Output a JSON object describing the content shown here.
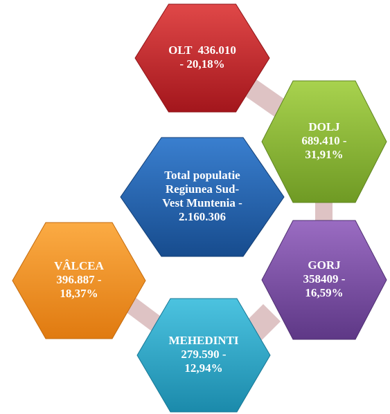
{
  "nodes": [
    {
      "lines": [
        "OLT  436.010",
        "- 20,18%"
      ]
    },
    {
      "lines": [
        "DOLJ",
        "689.410 -",
        "31,91%"
      ]
    },
    {
      "lines": [
        "Total populatie",
        "Regiunea Sud-",
        "Vest Muntenia -",
        "2.160.306"
      ]
    },
    {
      "lines": [
        "GORJ",
        "358409 -",
        "16,59%"
      ]
    },
    {
      "lines": [
        "VÂLCEA",
        "396.887 -",
        "18,37%"
      ]
    },
    {
      "lines": [
        "MEHEDINTI",
        "279.590 -",
        "12,94%"
      ]
    }
  ]
}
